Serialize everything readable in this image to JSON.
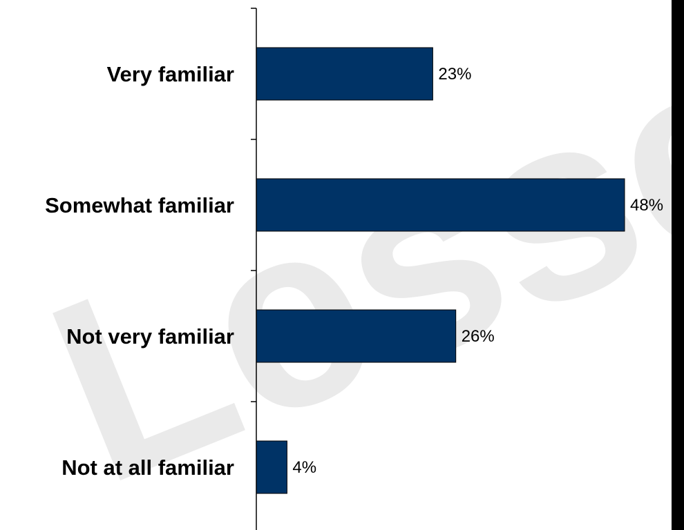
{
  "chart_data": {
    "type": "bar",
    "orientation": "horizontal",
    "categories": [
      "Very familiar",
      "Somewhat familiar",
      "Not very familiar",
      "Not at all familiar"
    ],
    "values": [
      23,
      48,
      26,
      4
    ],
    "value_labels": [
      "23%",
      "48%",
      "26%",
      "4%"
    ],
    "unit": "%",
    "xlim": [
      0,
      48
    ],
    "bar_color": "#003366",
    "grid": false,
    "legend": "none",
    "title": "",
    "xlabel": "",
    "ylabel": ""
  },
  "watermark": {
    "text": "Lesser"
  },
  "colors": {
    "bar": "#003366",
    "bar_edge": "#000000",
    "axis": "#000000",
    "right_band": "#000000",
    "watermark": "#d9d9d9"
  }
}
